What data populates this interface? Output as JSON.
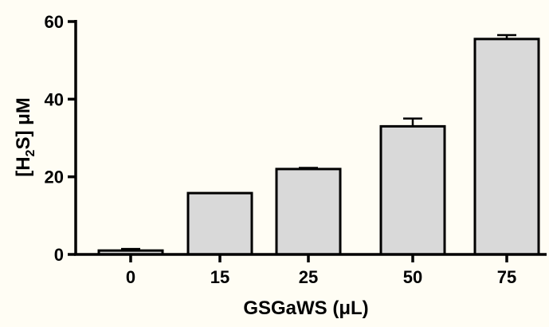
{
  "colors": {
    "background": "#fffdf4",
    "bar_fill": "#d9d9d9",
    "bar_stroke": "#000000"
  },
  "chart_data": {
    "type": "bar",
    "categories": [
      "0",
      "15",
      "25",
      "50",
      "75"
    ],
    "values": [
      1,
      15.8,
      22,
      33,
      55.5
    ],
    "errors": [
      0.4,
      0,
      0.3,
      2,
      1
    ],
    "xlabel": "GSGaWS (μL)",
    "ylabel": {
      "prefix": "[H",
      "subscript": "2",
      "suffix": "S] μM"
    },
    "ylim": [
      0,
      60
    ],
    "yticks": [
      "0",
      "20",
      "40",
      "60"
    ],
    "grid": false,
    "legend": "none"
  }
}
